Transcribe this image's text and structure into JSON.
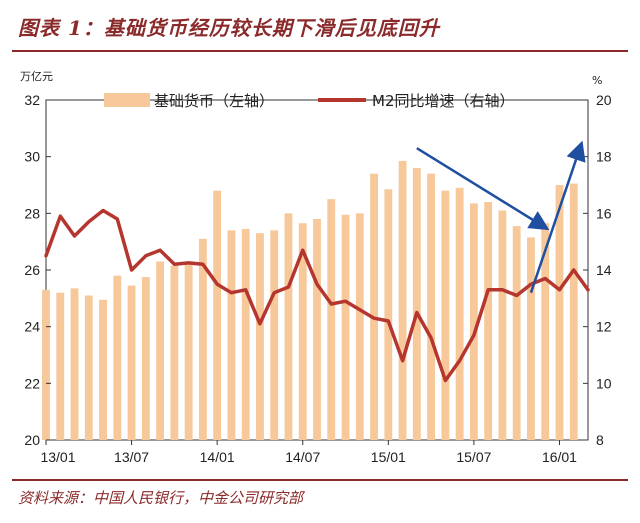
{
  "title": "图表 1：基础货币经历较长期下滑后见底回升",
  "source": "资料来源：中国人民银行，中金公司研究部",
  "chart_data": {
    "type": "bar+line",
    "left_axis": {
      "unit": "万亿元",
      "range": [
        20,
        32
      ],
      "ticks": [
        20,
        22,
        24,
        26,
        28,
        30,
        32
      ]
    },
    "right_axis": {
      "unit": "%",
      "range": [
        8,
        20
      ],
      "ticks": [
        8,
        10,
        12,
        14,
        16,
        18,
        20
      ]
    },
    "x_tick_labels": [
      "13/01",
      "13/07",
      "14/01",
      "14/07",
      "15/01",
      "15/07",
      "16/01"
    ],
    "x_tick_indices": [
      0,
      6,
      12,
      18,
      24,
      30,
      36
    ],
    "series": [
      {
        "name": "基础货币（左轴）",
        "type": "bar",
        "axis": "left",
        "color": "#f6c89a",
        "values": [
          25.3,
          25.2,
          25.35,
          25.1,
          24.95,
          25.8,
          25.45,
          25.75,
          26.3,
          26.15,
          26.25,
          27.1,
          28.8,
          27.4,
          27.45,
          27.3,
          27.4,
          28.0,
          27.65,
          27.8,
          28.5,
          27.95,
          28.0,
          29.4,
          28.85,
          29.85,
          29.6,
          29.4,
          28.8,
          28.9,
          28.35,
          28.4,
          28.1,
          27.55,
          27.15,
          27.65,
          29.0,
          29.05
        ]
      },
      {
        "name": "M2同比增速（右轴）",
        "type": "line",
        "axis": "right",
        "color": "#b5362f",
        "values": [
          14.5,
          15.9,
          15.2,
          15.7,
          16.1,
          15.8,
          14.0,
          14.5,
          14.7,
          14.2,
          14.25,
          14.2,
          13.5,
          13.2,
          13.3,
          12.1,
          13.2,
          13.4,
          14.7,
          13.5,
          12.8,
          12.9,
          12.6,
          12.3,
          12.2,
          10.8,
          12.5,
          11.6,
          10.1,
          10.8,
          11.7,
          13.3,
          13.3,
          13.1,
          13.5,
          13.7,
          13.3,
          14.0,
          13.3
        ]
      }
    ],
    "annotations": [
      {
        "type": "arrow",
        "from": [
          26,
          30.3
        ],
        "to": [
          35,
          27.5
        ],
        "color": "#1f4fa0"
      },
      {
        "type": "arrow",
        "from": [
          34,
          25.2
        ],
        "to": [
          37.5,
          30.4
        ],
        "color": "#1f4fa0"
      }
    ],
    "legend_position": "top",
    "grid": false
  }
}
